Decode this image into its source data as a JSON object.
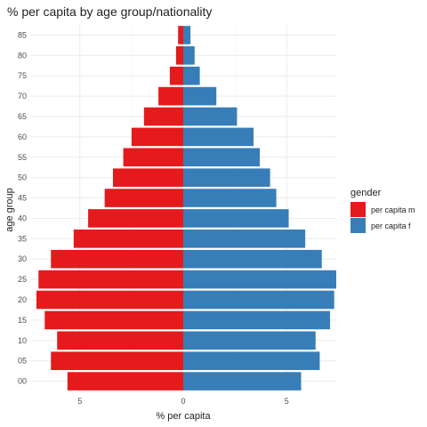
{
  "chart_data": {
    "type": "bar",
    "orientation": "horizontal",
    "title": "% per capita by age group/nationality",
    "xlabel": "% per capita",
    "ylabel": "age group",
    "categories": [
      "00",
      "05",
      "10",
      "15",
      "20",
      "25",
      "30",
      "35",
      "40",
      "45",
      "50",
      "55",
      "60",
      "65",
      "70",
      "75",
      "80",
      "85"
    ],
    "series": [
      {
        "name": "per capita m",
        "color": "#e41a1c",
        "values": [
          5.6,
          6.4,
          6.1,
          6.7,
          7.1,
          7.0,
          6.4,
          5.3,
          4.6,
          3.8,
          3.4,
          2.9,
          2.5,
          1.9,
          1.2,
          0.65,
          0.35,
          0.25
        ]
      },
      {
        "name": "per capita f",
        "color": "#377eb8",
        "values": [
          5.7,
          6.6,
          6.4,
          7.1,
          7.3,
          7.4,
          6.7,
          5.9,
          5.1,
          4.5,
          4.2,
          3.7,
          3.4,
          2.6,
          1.6,
          0.8,
          0.55,
          0.35
        ]
      }
    ],
    "xticks": [
      {
        "value": -5,
        "label": "5"
      },
      {
        "value": 0,
        "label": "0"
      },
      {
        "value": 5,
        "label": "5"
      }
    ],
    "xlim": [
      -7.4,
      7.4
    ],
    "grid": true,
    "legend": {
      "title": "gender",
      "position": "right"
    }
  }
}
